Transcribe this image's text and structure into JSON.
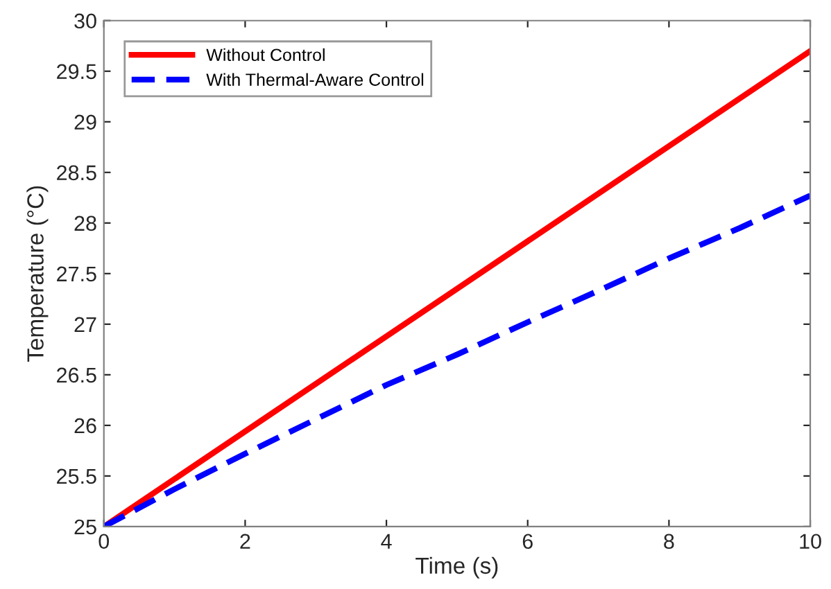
{
  "chart_data": {
    "type": "line",
    "xlabel": "Time (s)",
    "ylabel": "Temperature (°C)",
    "xlim": [
      0,
      10
    ],
    "xticks": [
      0,
      2,
      4,
      6,
      8,
      10
    ],
    "ylim": [
      25,
      30
    ],
    "yticks": [
      25,
      25.5,
      26,
      26.5,
      27,
      27.5,
      28,
      28.5,
      29,
      29.5,
      30
    ],
    "grid": false,
    "legend": "top left",
    "series": [
      {
        "name": "Without Control",
        "color": "#ff0000",
        "line_style": "solid",
        "x": [
          0,
          5,
          10
        ],
        "values": [
          25,
          27.35,
          29.7
        ]
      },
      {
        "name": "With Thermal-Aware Control",
        "color": "#0000ff",
        "line_style": "dashed",
        "x": [
          0,
          1,
          2,
          3,
          4,
          5,
          6,
          7,
          8,
          9,
          10
        ],
        "values": [
          25,
          25.37,
          25.72,
          26.06,
          26.4,
          26.7,
          27.02,
          27.33,
          27.65,
          27.95,
          28.27
        ]
      }
    ]
  }
}
